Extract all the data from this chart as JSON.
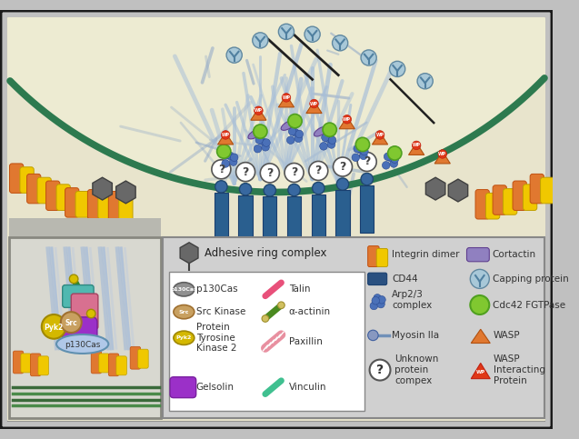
{
  "bg_outer": "#c0c0c0",
  "bg_main": "#f0edd8",
  "bg_cell": "#edebd2",
  "border_dark": "#1a1a1a",
  "border_mid": "#888888",
  "membrane_color": "#2d7a4f",
  "pillar_color": "#2a5f8f",
  "actin_color": "#a8bfd8",
  "actin_color2": "#90a8c8",
  "legend_bg": "#d0d0d0",
  "legend_inner_bg": "#e8e8e8",
  "inset_bg": "#d8d8d0",
  "adhesive_ring_label": "Adhesive ring complex",
  "legend_left": [
    {
      "label": "p130Cas",
      "tag": "p130Cas",
      "fc": "#909090",
      "ec": "#606060"
    },
    {
      "label": "Src Kinase",
      "tag": "Src",
      "fc": "#c8a060",
      "ec": "#a07030"
    },
    {
      "label": "Protein\nTyrosine\nKinase 2",
      "tag": "Pyk2",
      "fc": "#d4b800",
      "ec": "#a08800"
    },
    {
      "label": "Gelsolin",
      "tag": null,
      "fc": "#9b30c8",
      "ec": "#7a20a0"
    }
  ],
  "legend_mid": [
    {
      "label": "Talin",
      "fc": "#e8507a"
    },
    {
      "label": "α-actinin",
      "fc": "#4a8a20"
    },
    {
      "label": "Paxillin",
      "fc": "#e890a0"
    },
    {
      "label": "Vinculin",
      "fc": "#40c090"
    }
  ],
  "integrin_orange": "#e07830",
  "integrin_yellow": "#f0c800",
  "wasp_color": "#e07830",
  "wip_color": "#e03818",
  "cdc42_color": "#80c830",
  "arp23_color": "#4a70b8",
  "capping_color": "#a8c8d8",
  "cortactin_color": "#9080c0",
  "cd44_color": "#2a5080",
  "myosin_color": "#7090b8"
}
